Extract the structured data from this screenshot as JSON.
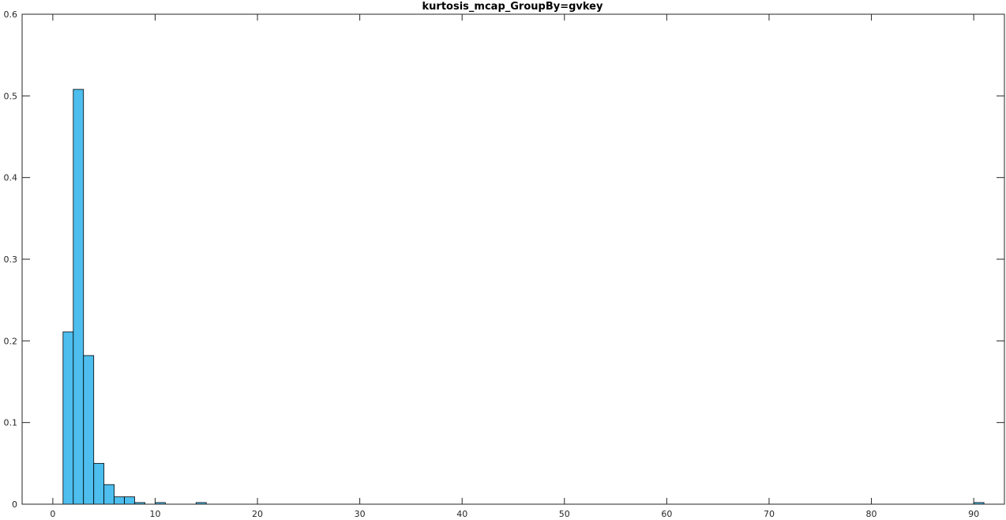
{
  "chart_data": {
    "type": "bar",
    "title": "kurtosis_mcap_GroupBy=gvkey",
    "xlabel": "",
    "ylabel": "",
    "xlim": [
      -3,
      93
    ],
    "ylim": [
      0,
      0.6
    ],
    "grid": false,
    "bar_color": "#5DA5D8",
    "x_ticks": [
      0,
      10,
      20,
      30,
      40,
      50,
      60,
      70,
      80,
      90
    ],
    "y_ticks": [
      0,
      0.1,
      0.2,
      0.3,
      0.4,
      0.5,
      0.6
    ],
    "x_tick_labels": [
      "0",
      "10",
      "20",
      "30",
      "40",
      "50",
      "60",
      "70",
      "80",
      "90"
    ],
    "y_tick_labels": [
      "0",
      "0.1",
      "0.2",
      "0.3",
      "0.4",
      "0.5",
      "0.6"
    ],
    "bins": [
      {
        "x0": 1.0,
        "x1": 2.0,
        "value": 0.211
      },
      {
        "x0": 2.0,
        "x1": 3.0,
        "value": 0.508
      },
      {
        "x0": 3.0,
        "x1": 4.0,
        "value": 0.182
      },
      {
        "x0": 4.0,
        "x1": 5.0,
        "value": 0.05
      },
      {
        "x0": 5.0,
        "x1": 6.0,
        "value": 0.024
      },
      {
        "x0": 6.0,
        "x1": 7.0,
        "value": 0.009
      },
      {
        "x0": 7.0,
        "x1": 8.0,
        "value": 0.009
      },
      {
        "x0": 8.0,
        "x1": 9.0,
        "value": 0.002
      },
      {
        "x0": 10.0,
        "x1": 11.0,
        "value": 0.002
      },
      {
        "x0": 14.0,
        "x1": 15.0,
        "value": 0.002
      },
      {
        "x0": 90.0,
        "x1": 91.0,
        "value": 0.002
      }
    ]
  }
}
